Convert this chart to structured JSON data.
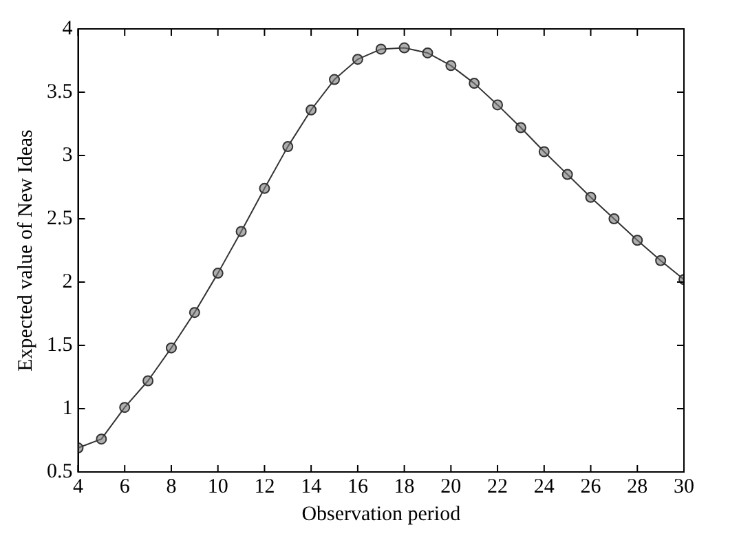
{
  "chart_data": {
    "type": "line",
    "xlabel": "Observation period",
    "ylabel": "Expected value of New Ideas",
    "x": [
      4,
      5,
      6,
      7,
      8,
      9,
      10,
      11,
      12,
      13,
      14,
      15,
      16,
      17,
      18,
      19,
      20,
      21,
      22,
      23,
      24,
      25,
      26,
      27,
      28,
      29,
      30
    ],
    "series": [
      {
        "color": "#333333",
        "values": [
          0.69,
          0.76,
          1.01,
          1.22,
          1.48,
          1.76,
          2.07,
          2.4,
          2.74,
          3.07,
          3.36,
          3.6,
          3.76,
          3.84,
          3.85,
          3.81,
          3.71,
          3.57,
          3.4,
          3.22,
          3.03,
          2.85,
          2.67,
          2.5,
          2.33,
          2.17,
          2.02
        ]
      }
    ],
    "xlim": [
      4,
      30
    ],
    "xticks": [
      4,
      6,
      8,
      10,
      12,
      14,
      16,
      18,
      20,
      22,
      24,
      26,
      28,
      30
    ],
    "ylim": [
      0.5,
      4
    ],
    "yticks": [
      0.5,
      1,
      1.5,
      2,
      2.5,
      3,
      3.5,
      4
    ],
    "grid": false,
    "legend": false,
    "marker": "circle",
    "line_style": "solid"
  }
}
